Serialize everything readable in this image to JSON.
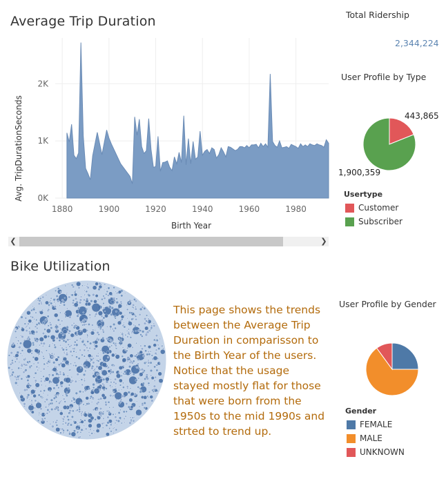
{
  "trip_chart": {
    "title": "Average Trip Duration",
    "xlabel": "Birth Year",
    "ylabel": "Avg. TripDurationSeconds",
    "x_ticks": [
      "1880",
      "1900",
      "1920",
      "1940",
      "1960",
      "1980"
    ],
    "y_ticks": [
      "0K",
      "1K",
      "2K"
    ]
  },
  "ridership": {
    "title": "Total Ridership",
    "value": "2,344,224"
  },
  "usertype": {
    "title": "User Profile by Type",
    "legend_title": "Usertype",
    "customer_label": "Customer",
    "subscriber_label": "Subscriber",
    "customer_value_label": "443,865",
    "subscriber_value_label": "1,900,359"
  },
  "bike": {
    "title": "Bike Utilization"
  },
  "note": {
    "text": "This page shows the trends between the Average Trip Duration in comparisson to the Birth Year of the users. Notice that the usage stayed mostly flat for those that were born from the 1950s to the mid 1990s and strted to trend up."
  },
  "gender": {
    "title": "User Profile by Gender",
    "legend_title": "Gender",
    "female_label": "FEMALE",
    "male_label": "MALE",
    "unknown_label": "UNKNOWN"
  },
  "colors": {
    "area": "#7b9cc4",
    "customer": "#e15759",
    "subscriber": "#59a14f",
    "female": "#4e79a7",
    "male": "#f28e2b",
    "unknown": "#e15759",
    "note_text": "#b36b0c",
    "link_value": "#5b84b1"
  },
  "chart_data": [
    {
      "type": "area",
      "title": "Average Trip Duration",
      "xlabel": "Birth Year",
      "ylabel": "Avg. TripDurationSeconds",
      "xlim": [
        1877,
        1994
      ],
      "ylim": [
        0,
        2800
      ],
      "series": [
        {
          "x": [
            1882,
            1883,
            1884,
            1885,
            1886,
            1887,
            1888,
            1889,
            1890,
            1891,
            1892,
            1893,
            1895,
            1897,
            1899,
            1900,
            1901,
            1905,
            1909,
            1910,
            1911,
            1912,
            1913,
            1914,
            1915,
            1916,
            1917,
            1918,
            1919,
            1920,
            1921,
            1922,
            1923,
            1924,
            1925,
            1926,
            1927,
            1928,
            1929,
            1930,
            1931,
            1932,
            1933,
            1934,
            1935,
            1936,
            1937,
            1938,
            1939,
            1940,
            1941,
            1942,
            1943,
            1944,
            1945,
            1946,
            1947,
            1948,
            1949,
            1950,
            1951,
            1952,
            1953,
            1954,
            1955,
            1956,
            1957,
            1958,
            1959,
            1960,
            1961,
            1962,
            1963,
            1964,
            1965,
            1966,
            1967,
            1968,
            1969,
            1970,
            1971,
            1972,
            1973,
            1974,
            1975,
            1976,
            1977,
            1978,
            1979,
            1980,
            1981,
            1982,
            1983,
            1984,
            1985,
            1986,
            1987,
            1988,
            1989,
            1990,
            1991,
            1992,
            1993,
            1994
          ],
          "values": [
            1140,
            980,
            1290,
            750,
            690,
            790,
            2720,
            1090,
            520,
            430,
            320,
            740,
            1150,
            760,
            1190,
            1050,
            950,
            600,
            380,
            250,
            1420,
            1100,
            1380,
            900,
            780,
            830,
            1390,
            850,
            540,
            550,
            1080,
            470,
            620,
            630,
            650,
            540,
            480,
            720,
            600,
            800,
            620,
            1440,
            580,
            1040,
            600,
            990,
            680,
            720,
            1170,
            750,
            820,
            850,
            780,
            880,
            850,
            700,
            760,
            880,
            810,
            720,
            900,
            890,
            860,
            830,
            850,
            900,
            900,
            880,
            920,
            880,
            930,
            930,
            940,
            880,
            960,
            900,
            950,
            890,
            2170,
            990,
            920,
            890,
            1000,
            880,
            890,
            900,
            870,
            940,
            920,
            900,
            870,
            950,
            900,
            930,
            900,
            950,
            930,
            920,
            950,
            930,
            920,
            890,
            1020,
            960
          ]
        }
      ]
    },
    {
      "type": "pie",
      "title": "User Profile by Type",
      "categories": [
        "Customer",
        "Subscriber"
      ],
      "values": [
        443865,
        1900359
      ]
    },
    {
      "type": "pie",
      "title": "User Profile by Gender",
      "categories": [
        "FEMALE",
        "MALE",
        "UNKNOWN"
      ],
      "values": [
        25,
        65,
        10
      ]
    }
  ]
}
